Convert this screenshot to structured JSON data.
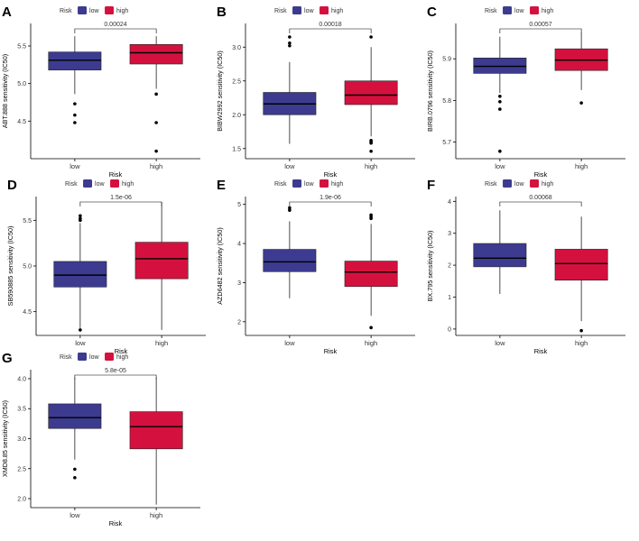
{
  "legend": {
    "title": "Risk",
    "low_label": "low",
    "high_label": "high"
  },
  "colors": {
    "low": "#3c3b90",
    "high": "#d4113e",
    "axis": "#000000",
    "text": "#333333"
  },
  "chart_data": [
    {
      "type": "box",
      "panel": "A",
      "ylabel": "ABT.888 sensitivity (IC50)",
      "xlabel": "Risk",
      "categories": [
        "low",
        "high"
      ],
      "ylim": [
        4.0,
        5.8
      ],
      "yticks": [
        4.5,
        5.0,
        5.5
      ],
      "ytick_labels": [
        "4.5",
        "5.0",
        "5.5"
      ],
      "pvalue": "0.00024",
      "boxes": [
        {
          "name": "low",
          "q1": 5.18,
          "median": 5.31,
          "q3": 5.42,
          "whisker_low": 4.86,
          "whisker_high": 5.63,
          "outliers": [
            4.73,
            4.58,
            4.48
          ]
        },
        {
          "name": "high",
          "q1": 5.26,
          "median": 5.41,
          "q3": 5.52,
          "whisker_low": 4.93,
          "whisker_high": 5.63,
          "outliers": [
            4.86,
            4.48,
            4.1
          ]
        }
      ]
    },
    {
      "type": "box",
      "panel": "B",
      "ylabel": "BIBW2992 sensitivity (IC50)",
      "xlabel": "Risk",
      "categories": [
        "low",
        "high"
      ],
      "ylim": [
        1.35,
        3.35
      ],
      "yticks": [
        1.5,
        2.0,
        2.5,
        3.0
      ],
      "ytick_labels": [
        "1.5",
        "2.0",
        "2.5",
        "3.0"
      ],
      "pvalue": "0.00018",
      "boxes": [
        {
          "name": "low",
          "q1": 2.0,
          "median": 2.16,
          "q3": 2.33,
          "whisker_low": 1.57,
          "whisker_high": 2.78,
          "outliers": [
            3.15,
            3.06,
            3.02
          ]
        },
        {
          "name": "high",
          "q1": 2.15,
          "median": 2.29,
          "q3": 2.5,
          "whisker_low": 1.68,
          "whisker_high": 3.0,
          "outliers": [
            3.15,
            1.62,
            1.6,
            1.58,
            1.46
          ]
        }
      ]
    },
    {
      "type": "box",
      "panel": "C",
      "ylabel": "BIRB.0796 sensitivity (IC50)",
      "xlabel": "Risk",
      "categories": [
        "low",
        "high"
      ],
      "ylim": [
        5.66,
        5.985
      ],
      "yticks": [
        5.7,
        5.8,
        5.9
      ],
      "ytick_labels": [
        "5.7",
        "5.8",
        "5.9"
      ],
      "pvalue": "0.00057",
      "boxes": [
        {
          "name": "low",
          "q1": 5.865,
          "median": 5.882,
          "q3": 5.902,
          "whisker_low": 5.818,
          "whisker_high": 5.953,
          "outliers": [
            5.81,
            5.797,
            5.779,
            5.678
          ]
        },
        {
          "name": "high",
          "q1": 5.872,
          "median": 5.897,
          "q3": 5.924,
          "whisker_low": 5.825,
          "whisker_high": 5.963,
          "outliers": [
            5.794
          ]
        }
      ]
    },
    {
      "type": "box",
      "panel": "D",
      "ylabel": "SB590885 sensitivity (IC50)",
      "xlabel": "Risk",
      "categories": [
        "low",
        "high"
      ],
      "ylim": [
        4.24,
        5.76
      ],
      "yticks": [
        4.5,
        5.0,
        5.5
      ],
      "ytick_labels": [
        "4.5",
        "5.0",
        "5.5"
      ],
      "pvalue": "1.5e-06",
      "boxes": [
        {
          "name": "low",
          "q1": 4.77,
          "median": 4.9,
          "q3": 5.05,
          "whisker_low": 4.32,
          "whisker_high": 5.47,
          "outliers": [
            5.55,
            5.52,
            5.5,
            4.3
          ]
        },
        {
          "name": "high",
          "q1": 4.86,
          "median": 5.08,
          "q3": 5.26,
          "whisker_low": 4.3,
          "whisker_high": 5.7,
          "outliers": []
        }
      ]
    },
    {
      "type": "box",
      "panel": "E",
      "ylabel": "AZD6482 sensitivity (IC50)",
      "xlabel": "Risk",
      "categories": [
        "low",
        "high"
      ],
      "ylim": [
        1.65,
        5.2
      ],
      "yticks": [
        2,
        3,
        4,
        5
      ],
      "ytick_labels": [
        "2",
        "3",
        "4",
        "5"
      ],
      "pvalue": "1.9e-06",
      "boxes": [
        {
          "name": "low",
          "q1": 3.28,
          "median": 3.53,
          "q3": 3.85,
          "whisker_low": 2.6,
          "whisker_high": 4.57,
          "outliers": [
            4.91,
            4.85
          ]
        },
        {
          "name": "high",
          "q1": 2.9,
          "median": 3.27,
          "q3": 3.55,
          "whisker_low": 2.15,
          "whisker_high": 4.5,
          "outliers": [
            4.73,
            4.68,
            4.64,
            1.85
          ]
        }
      ]
    },
    {
      "type": "box",
      "panel": "F",
      "ylabel": "BX.795 sensitivity (IC50)",
      "xlabel": "Risk",
      "categories": [
        "low",
        "high"
      ],
      "ylim": [
        -0.2,
        4.15
      ],
      "yticks": [
        0,
        1,
        2,
        3,
        4
      ],
      "ytick_labels": [
        "0",
        "1",
        "2",
        "3",
        "4"
      ],
      "pvalue": "0.00068",
      "boxes": [
        {
          "name": "low",
          "q1": 1.95,
          "median": 2.22,
          "q3": 2.68,
          "whisker_low": 1.1,
          "whisker_high": 3.72,
          "outliers": []
        },
        {
          "name": "high",
          "q1": 1.53,
          "median": 2.05,
          "q3": 2.5,
          "whisker_low": 0.25,
          "whisker_high": 3.52,
          "outliers": [
            -0.05
          ]
        }
      ]
    },
    {
      "type": "box",
      "panel": "G",
      "ylabel": "XMD8.85 sensitivity (IC50)",
      "xlabel": "Risk",
      "categories": [
        "low",
        "high"
      ],
      "ylim": [
        1.85,
        4.15
      ],
      "yticks": [
        2.0,
        2.5,
        3.0,
        3.5,
        4.0
      ],
      "ytick_labels": [
        "2.0",
        "2.5",
        "3.0",
        "3.5",
        "4.0"
      ],
      "pvalue": "5.8e-05",
      "boxes": [
        {
          "name": "low",
          "q1": 3.17,
          "median": 3.35,
          "q3": 3.58,
          "whisker_low": 2.65,
          "whisker_high": 4.02,
          "outliers": [
            2.49,
            2.35
          ]
        },
        {
          "name": "high",
          "q1": 2.83,
          "median": 3.2,
          "q3": 3.45,
          "whisker_low": 1.9,
          "whisker_high": 4.02,
          "outliers": []
        }
      ]
    }
  ]
}
